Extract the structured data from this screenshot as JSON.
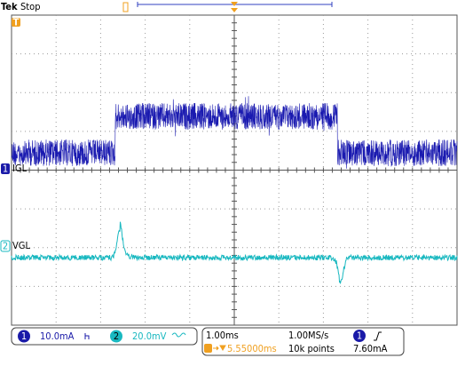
{
  "header": {
    "brand": "Tek",
    "status": "Stop"
  },
  "trigger_marker": "T",
  "channels": [
    {
      "number": "1",
      "label": "IGL"
    },
    {
      "number": "2",
      "label": "VGL"
    }
  ],
  "status_bar": {
    "ch1_number": "1",
    "ch1_scale": "10.0mA",
    "ch2_number": "2",
    "ch2_scale": "20.0mV",
    "timebase": "1.00ms",
    "sample_rate": "1.00MS/s",
    "trigger_source": "1",
    "trigger_position": "5.55000ms",
    "record_length": "10k points",
    "trigger_level": "7.60mA"
  }
}
